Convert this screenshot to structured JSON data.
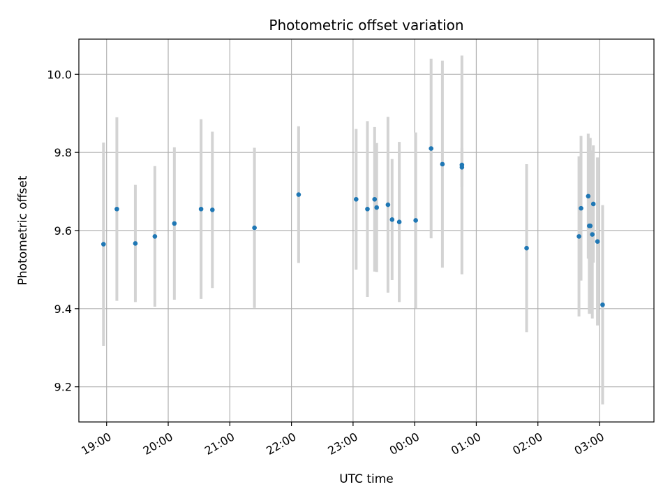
{
  "chart_data": {
    "type": "scatter",
    "title": "Photometric offset variation",
    "xlabel": "UTC time",
    "ylabel": "Photometric offset",
    "x_tick_labels": [
      "19:00",
      "20:00",
      "21:00",
      "22:00",
      "23:00",
      "00:00",
      "01:00",
      "02:00",
      "03:00"
    ],
    "y_ticks": [
      9.2,
      9.4,
      9.6,
      9.8,
      10.0
    ],
    "y_tick_labels": [
      "9.2",
      "9.4",
      "9.6",
      "9.8",
      "10.0"
    ],
    "xlim": [
      "18:33",
      "03:53"
    ],
    "ylim": [
      9.11,
      10.09
    ],
    "grid": true,
    "colors": {
      "points": "#1f77b4",
      "errorbars": "#d3d3d3",
      "grid": "#b0b0b0"
    },
    "points": [
      {
        "t": "18:57",
        "y": 9.565,
        "err": 0.26
      },
      {
        "t": "19:10",
        "y": 9.655,
        "err": 0.235
      },
      {
        "t": "19:28",
        "y": 9.567,
        "err": 0.15
      },
      {
        "t": "19:47",
        "y": 9.585,
        "err": 0.18
      },
      {
        "t": "20:06",
        "y": 9.618,
        "err": 0.195
      },
      {
        "t": "20:32",
        "y": 9.655,
        "err": 0.23
      },
      {
        "t": "20:43",
        "y": 9.653,
        "err": 0.2
      },
      {
        "t": "21:24",
        "y": 9.607,
        "err": 0.205
      },
      {
        "t": "22:07",
        "y": 9.692,
        "err": 0.175
      },
      {
        "t": "23:03",
        "y": 9.68,
        "err": 0.18
      },
      {
        "t": "23:14",
        "y": 9.655,
        "err": 0.225
      },
      {
        "t": "23:21",
        "y": 9.68,
        "err": 0.185
      },
      {
        "t": "23:23",
        "y": 9.659,
        "err": 0.165
      },
      {
        "t": "23:34",
        "y": 9.666,
        "err": 0.225
      },
      {
        "t": "23:38",
        "y": 9.628,
        "err": 0.155
      },
      {
        "t": "23:45",
        "y": 9.622,
        "err": 0.205
      },
      {
        "t": "00:01",
        "y": 9.626,
        "err": 0.225
      },
      {
        "t": "00:16",
        "y": 9.81,
        "err": 0.23
      },
      {
        "t": "00:27",
        "y": 9.77,
        "err": 0.265
      },
      {
        "t": "00:46",
        "y": 9.768,
        "err": 0.28
      },
      {
        "t": "00:46",
        "y": 9.762,
        "err": 0.05
      },
      {
        "t": "01:49",
        "y": 9.555,
        "err": 0.215
      },
      {
        "t": "02:40",
        "y": 9.585,
        "err": 0.205
      },
      {
        "t": "02:42",
        "y": 9.657,
        "err": 0.185
      },
      {
        "t": "02:49",
        "y": 9.688,
        "err": 0.16
      },
      {
        "t": "02:50",
        "y": 9.612,
        "err": 0.225
      },
      {
        "t": "02:51",
        "y": 9.612,
        "err": 0.225
      },
      {
        "t": "02:53",
        "y": 9.59,
        "err": 0.215
      },
      {
        "t": "02:54",
        "y": 9.668,
        "err": 0.15
      },
      {
        "t": "02:58",
        "y": 9.572,
        "err": 0.215
      },
      {
        "t": "03:03",
        "y": 9.41,
        "err": 0.255
      }
    ]
  }
}
